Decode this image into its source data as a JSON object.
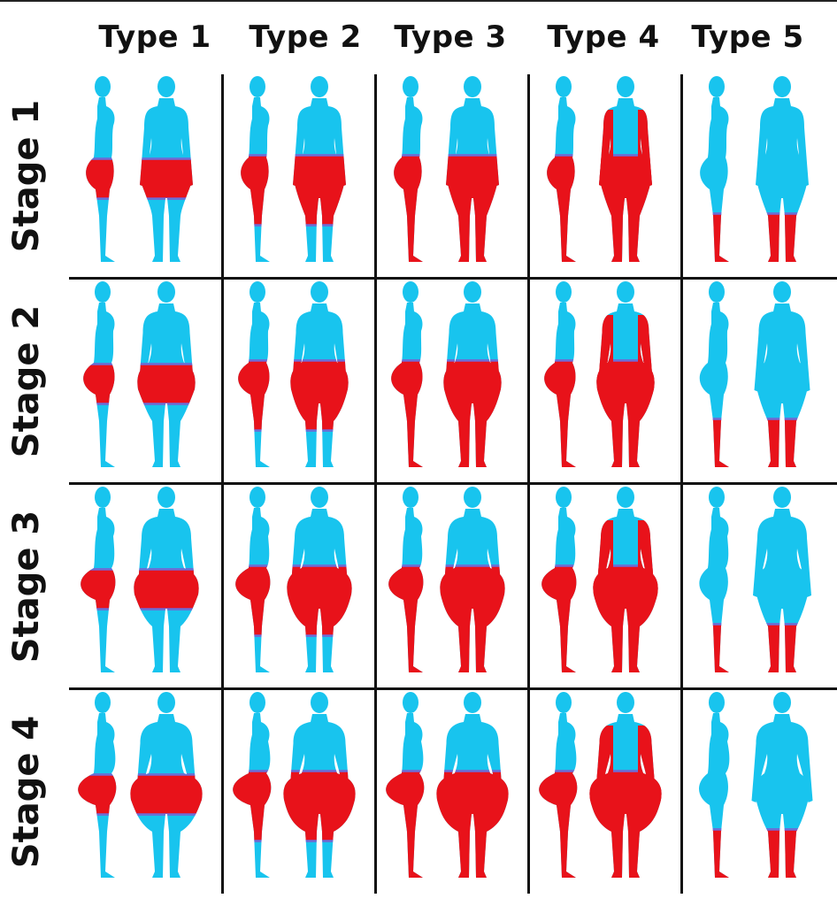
{
  "columns": [
    "Type 1",
    "Type 2",
    "Type 3",
    "Type 4",
    "Type 5"
  ],
  "rows": [
    "Stage 1",
    "Stage 2",
    "Stage 3",
    "Stage 4"
  ],
  "colors": {
    "body": "#18c4ee",
    "fat": "#e8121a",
    "blend": "#7a5fd0",
    "lines": "#111111"
  },
  "fat_distribution": {
    "Type 1": "hips",
    "Type 2": "hips-thighs",
    "Type 3": "hips-legs",
    "Type 4": "arms-hips-legs",
    "Type 5": "lower-legs"
  }
}
